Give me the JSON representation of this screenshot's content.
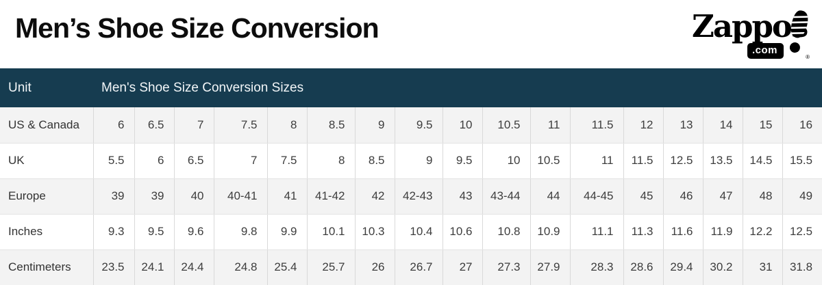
{
  "page": {
    "title": "Men’s Shoe Size Conversion"
  },
  "logo": {
    "brand": "Zappos",
    "domain": ".com",
    "registered": "®"
  },
  "table": {
    "header": {
      "unit": "Unit",
      "sizes": "Men's Shoe Size Conversion Sizes"
    },
    "rows": [
      {
        "label": "US & Canada",
        "values": [
          "6",
          "6.5",
          "7",
          "7.5",
          "8",
          "8.5",
          "9",
          "9.5",
          "10",
          "10.5",
          "11",
          "11.5",
          "12",
          "13",
          "14",
          "15",
          "16"
        ]
      },
      {
        "label": "UK",
        "values": [
          "5.5",
          "6",
          "6.5",
          "7",
          "7.5",
          "8",
          "8.5",
          "9",
          "9.5",
          "10",
          "10.5",
          "11",
          "11.5",
          "12.5",
          "13.5",
          "14.5",
          "15.5"
        ]
      },
      {
        "label": "Europe",
        "values": [
          "39",
          "39",
          "40",
          "40-41",
          "41",
          "41-42",
          "42",
          "42-43",
          "43",
          "43-44",
          "44",
          "44-45",
          "45",
          "46",
          "47",
          "48",
          "49"
        ]
      },
      {
        "label": "Inches",
        "values": [
          "9.3",
          "9.5",
          "9.6",
          "9.8",
          "9.9",
          "10.1",
          "10.3",
          "10.4",
          "10.6",
          "10.8",
          "10.9",
          "11.1",
          "11.3",
          "11.6",
          "11.9",
          "12.2",
          "12.5"
        ]
      },
      {
        "label": "Centimeters",
        "values": [
          "23.5",
          "24.1",
          "24.4",
          "24.8",
          "25.4",
          "25.7",
          "26",
          "26.7",
          "27",
          "27.3",
          "27.9",
          "28.3",
          "28.6",
          "29.4",
          "30.2",
          "31",
          "31.8"
        ]
      }
    ]
  },
  "colors": {
    "header_bg": "#163c50",
    "stripe_bg": "#f3f3f3",
    "border": "#d9d9d9",
    "title_text": "#0d0d0d",
    "cell_text": "#3d3d3d"
  }
}
